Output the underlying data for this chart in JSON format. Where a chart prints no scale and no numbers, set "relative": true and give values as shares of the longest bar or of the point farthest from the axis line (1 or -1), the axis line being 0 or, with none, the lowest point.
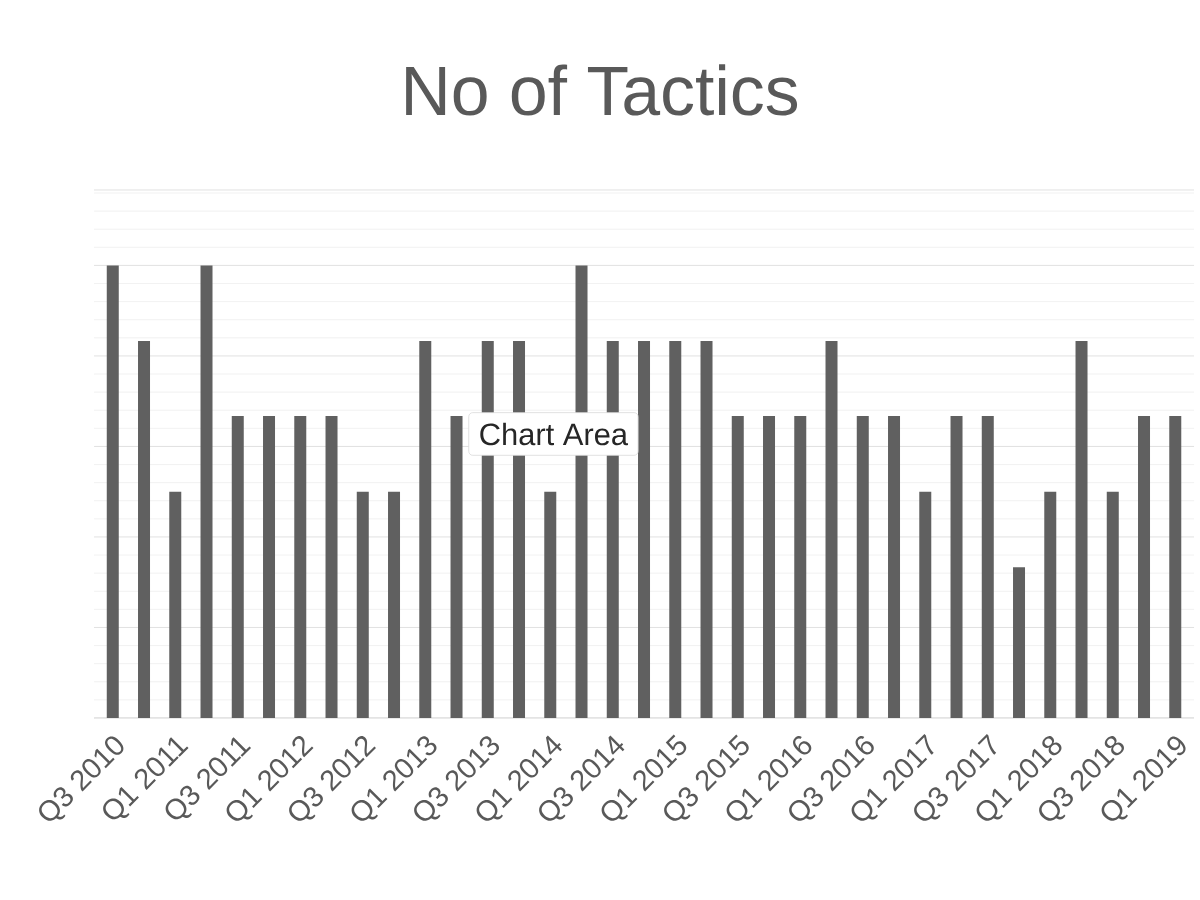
{
  "chart_data": {
    "type": "bar",
    "title": "No of Tactics",
    "categories": [
      "Q3 2010",
      null,
      "Q1 2011",
      null,
      "Q3 2011",
      null,
      "Q1 2012",
      null,
      "Q3 2012",
      null,
      "Q1 2013",
      null,
      "Q3 2013",
      null,
      "Q1 2014",
      null,
      "Q3 2014",
      null,
      "Q1 2015",
      null,
      "Q3 2015",
      null,
      "Q1 2016",
      null,
      "Q3 2016",
      null,
      "Q1 2017",
      null,
      "Q3 2017",
      null,
      "Q1 2018",
      null,
      "Q3 2018",
      null,
      "Q1 2019"
    ],
    "values": [
      1,
      0.833,
      0.5,
      1,
      0.667,
      0.667,
      0.667,
      0.667,
      0.5,
      0.5,
      0.833,
      0.667,
      0.833,
      0.833,
      0.5,
      1,
      0.833,
      0.833,
      0.833,
      0.833,
      0.667,
      0.667,
      0.667,
      0.833,
      0.667,
      0.667,
      0.5,
      0.667,
      0.667,
      0.333,
      0.5,
      0.833,
      0.5,
      0.667,
      0.667
    ],
    "color": "#606060",
    "relative": true,
    "grid": "y",
    "annotations": [
      "Chart Area"
    ]
  }
}
